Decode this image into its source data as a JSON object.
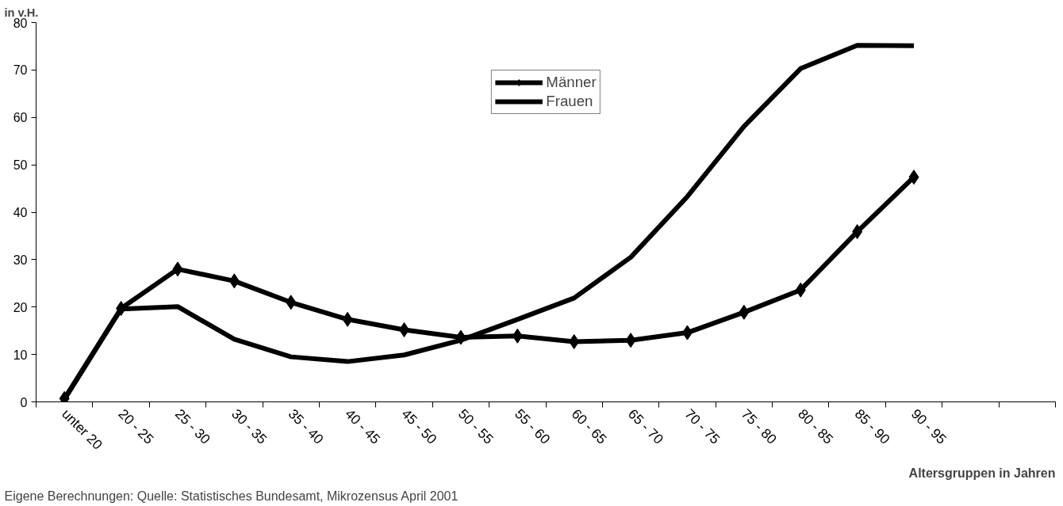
{
  "chart_data": {
    "type": "line",
    "ylabel": "in v.H.",
    "xlabel": "Altersgruppen in Jahren",
    "annotations": [
      "Eigene Berechnungen: Quelle: Statistisches Bundesamt, Mikrozensus April 2001"
    ],
    "categories": [
      "unter 20",
      "20 - 25",
      "25 - 30",
      "30 - 35",
      "35 - 40",
      "40 - 45",
      "45 - 50",
      "50 - 55",
      "55 - 60",
      "60 - 65",
      "65 - 70",
      "70 - 75",
      "75 - 80",
      "80 - 85",
      "85 - 90",
      "90 - 95",
      null,
      null
    ],
    "series": [
      {
        "name": "Männer",
        "color": "#000000",
        "marker": "diamond",
        "values": [
          0.7,
          19.7,
          28.0,
          25.5,
          21.0,
          17.4,
          15.2,
          13.6,
          13.9,
          12.7,
          13.0,
          14.6,
          18.9,
          23.6,
          35.9,
          47.4,
          null,
          null
        ]
      },
      {
        "name": "Frauen",
        "color": "#000000",
        "marker": "none",
        "values": [
          0.5,
          19.6,
          20.1,
          13.2,
          9.5,
          8.5,
          9.9,
          13.0,
          17.4,
          21.9,
          30.5,
          43.3,
          58.1,
          70.3,
          75.2,
          75.1,
          null,
          null
        ]
      }
    ],
    "ylim": [
      0,
      80
    ],
    "yticks": [
      0,
      10,
      20,
      30,
      40,
      50,
      60,
      70,
      80
    ],
    "grid": false,
    "legend": "top",
    "line_style": "solid"
  }
}
